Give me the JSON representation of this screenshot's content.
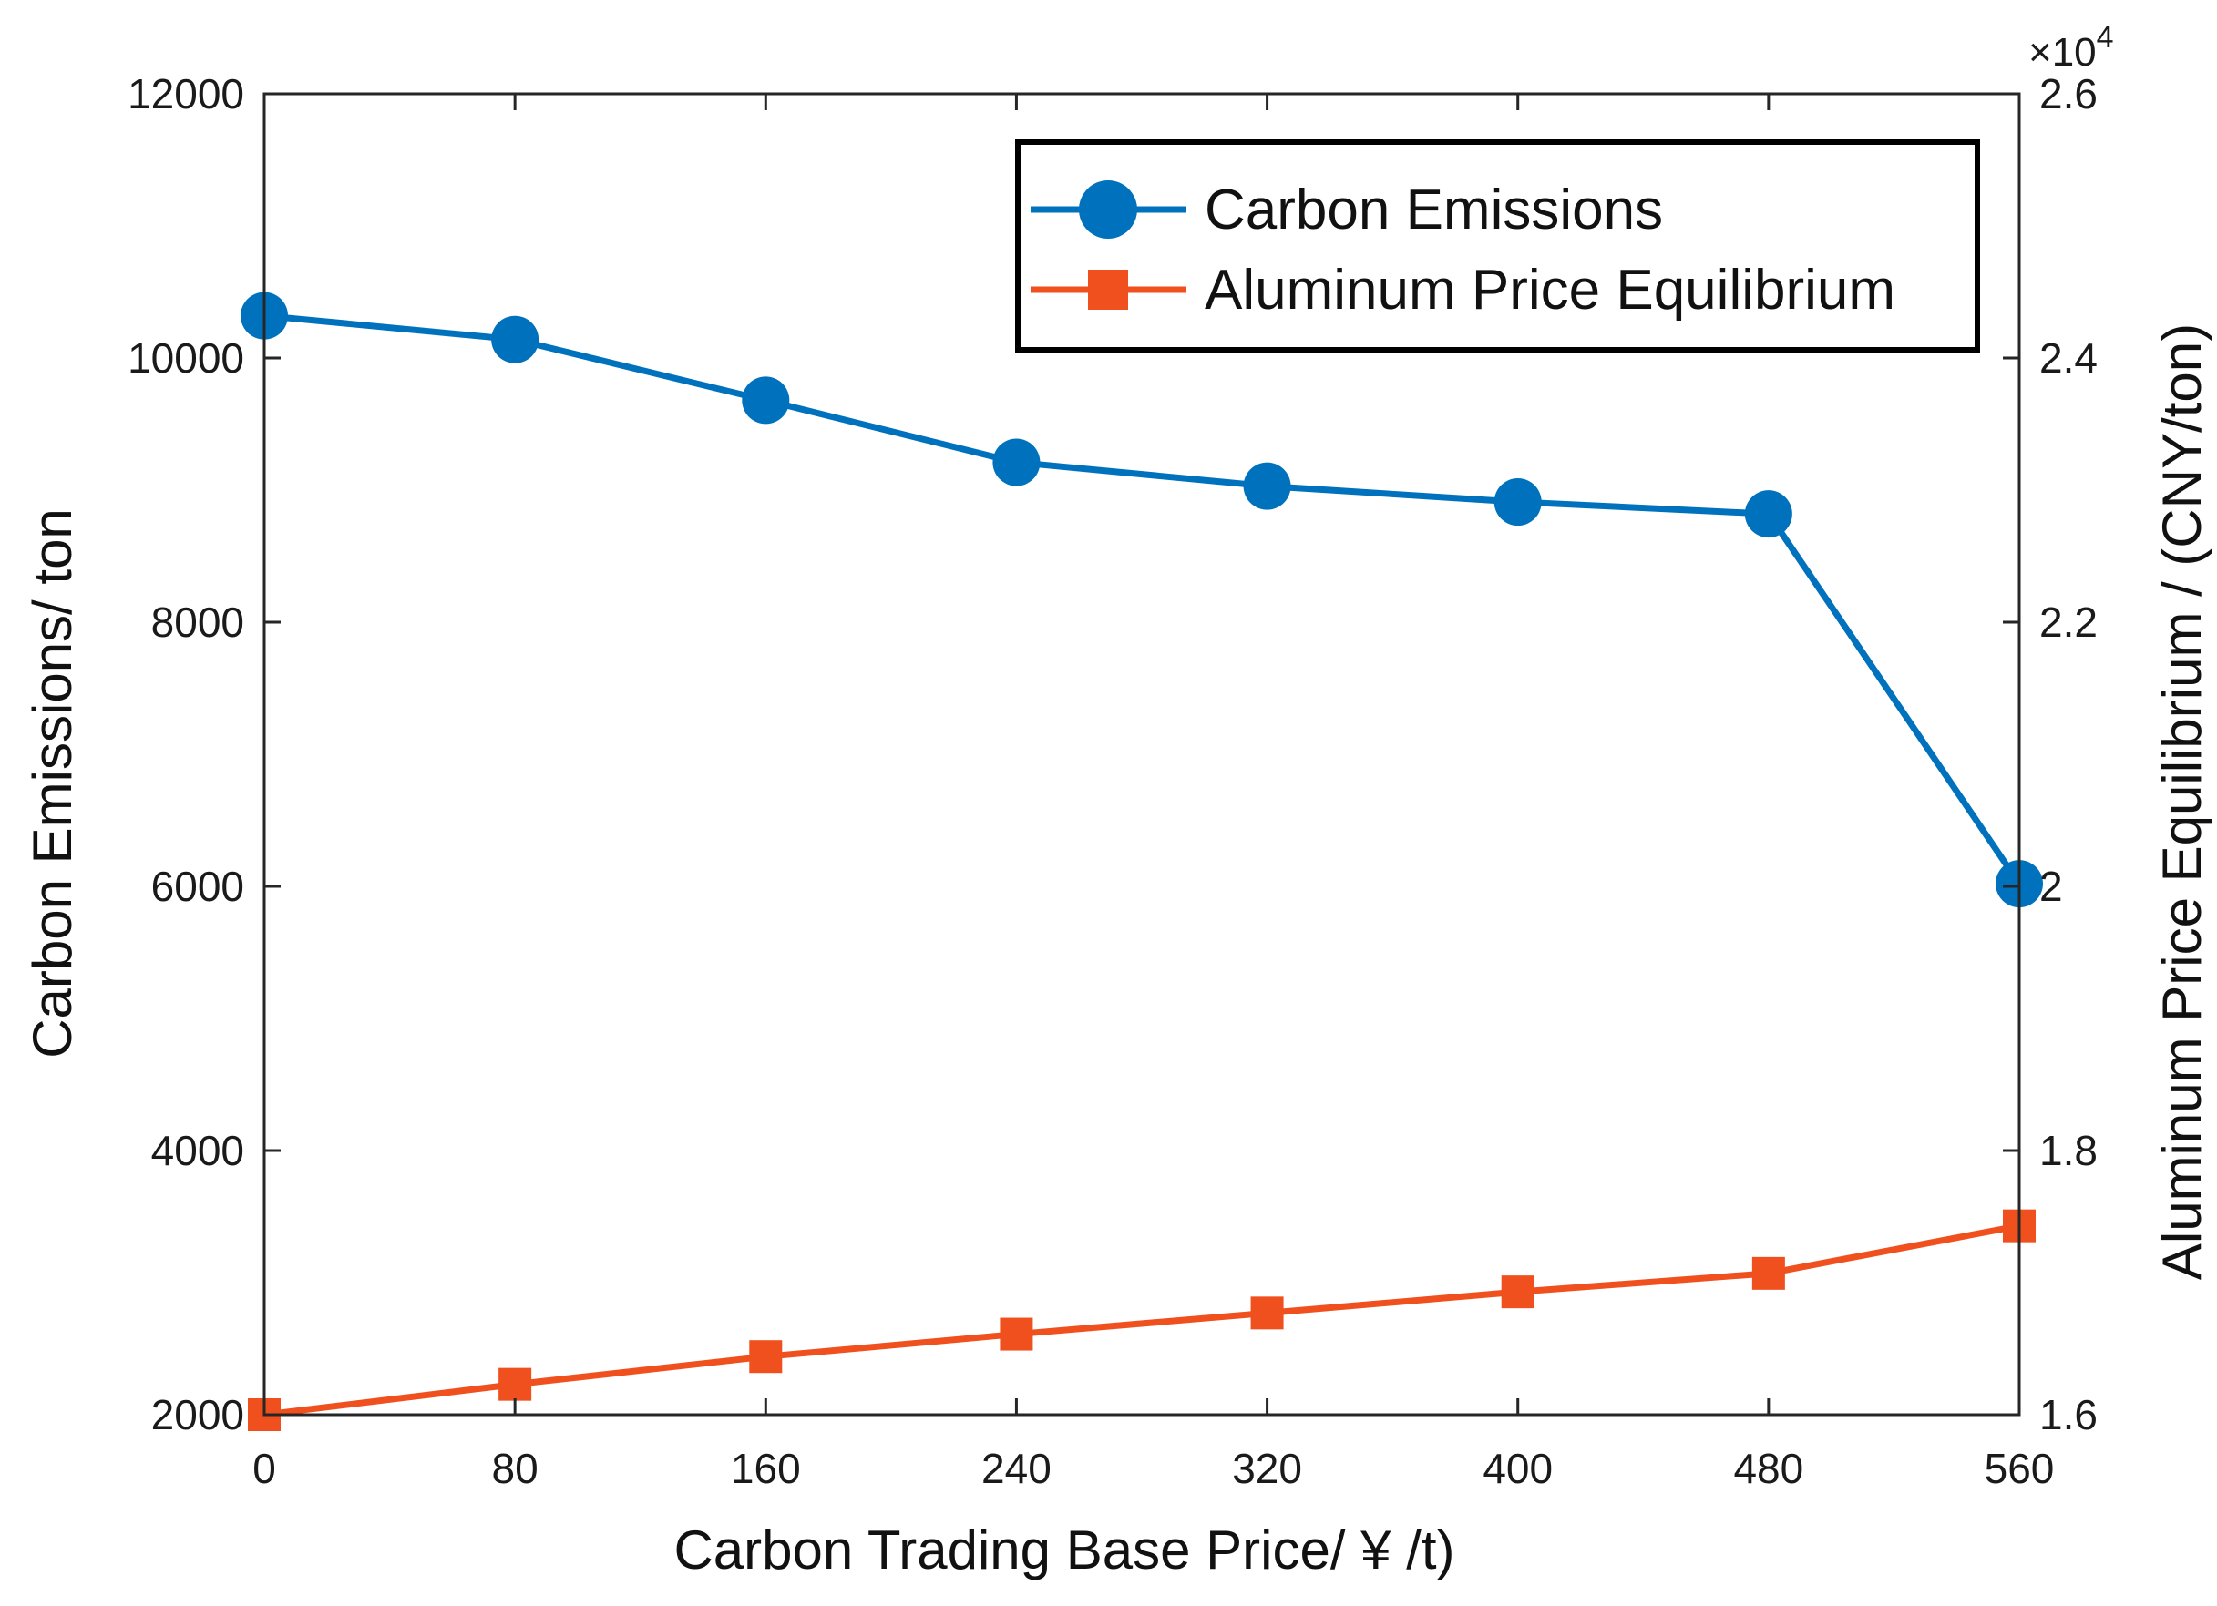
{
  "chart_data": {
    "type": "line",
    "title": "",
    "xlabel": "Carbon Trading Base Price/ ¥ /t)",
    "ylabel_left": "Carbon Emissions/ ton",
    "ylabel_right": "Aluminum Price Equilibrium / (CNY/ton)",
    "x": [
      0,
      80,
      160,
      240,
      320,
      400,
      480,
      560
    ],
    "x_ticks": [
      "0",
      "80",
      "160",
      "240",
      "320",
      "400",
      "480",
      "560"
    ],
    "xlim": [
      0,
      560
    ],
    "ylim_left": [
      2000,
      12000
    ],
    "y_ticks_left": [
      "2000",
      "4000",
      "6000",
      "8000",
      "10000",
      "12000"
    ],
    "ylim_right": [
      1.6,
      2.6
    ],
    "y_ticks_right": [
      "1.6",
      "1.8",
      "2",
      "2.2",
      "2.4",
      "2.6"
    ],
    "right_axis_multiplier": "×10",
    "right_axis_exponent": "4",
    "legend_position": "top-right",
    "grid": false,
    "series": [
      {
        "name": "Carbon Emissions",
        "axis": "left",
        "color": "#0072BD",
        "marker": "circle",
        "values": [
          10320,
          10140,
          9680,
          9210,
          9030,
          8910,
          8820,
          6020
        ]
      },
      {
        "name": "Aluminum Price Equilibrium",
        "axis": "right",
        "color": "#F0501E",
        "marker": "square",
        "values": [
          1.6,
          1.623,
          1.644,
          1.661,
          1.677,
          1.693,
          1.707,
          1.743
        ]
      }
    ]
  }
}
